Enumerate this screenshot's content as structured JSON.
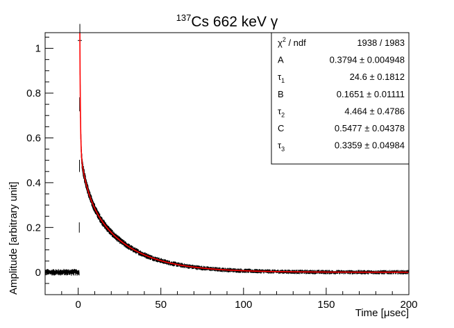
{
  "chart_data": {
    "type": "scatter",
    "title": {
      "superscript": "137",
      "text": "Cs 662 keV γ"
    },
    "xlabel": "Time [μsec]",
    "ylabel": "Amplitude [arbitrary unit]",
    "xlim": [
      -20,
      200
    ],
    "ylim": [
      -0.1,
      1.07
    ],
    "xticks": [
      0,
      50,
      100,
      150,
      200
    ],
    "yticks": [
      0,
      0.2,
      0.4,
      0.6,
      0.8,
      1
    ],
    "ytick_labels": [
      "0",
      "0.2",
      "0.4",
      "0.6",
      "0.8",
      "1"
    ],
    "grid": false,
    "series": [
      {
        "kind": "data points with error bars",
        "color": "#000000",
        "baseline_before_pulse": 0.0,
        "pulse_start_x": 0.6,
        "peak": {
          "x": 1.0,
          "y": 1.0,
          "error": 0.035
        }
      },
      {
        "kind": "fit curve",
        "color": "#ff0000",
        "model": "A·exp(-t/τ1) + B·exp(-t/τ2) + C·exp(-t/τ3)",
        "range": [
          1.0,
          200
        ]
      }
    ],
    "stats_box": {
      "placement": "top-right",
      "rows": [
        {
          "name": "χ",
          "sup": "2",
          "suffix": " / ndf",
          "value": "1938 / 1983"
        },
        {
          "name": "A",
          "sub": "",
          "value": "0.3794",
          "error": "0.004948"
        },
        {
          "name": "τ",
          "sub": "1",
          "value": "24.6",
          "error": "0.1812"
        },
        {
          "name": "B",
          "sub": "",
          "value": "0.1651",
          "error": "0.01111"
        },
        {
          "name": "τ",
          "sub": "2",
          "value": "4.464",
          "error": "0.4786"
        },
        {
          "name": "C",
          "sub": "",
          "value": "0.5477",
          "error": "0.04378"
        },
        {
          "name": "τ",
          "sub": "3",
          "value": "0.3359",
          "error": "0.04984"
        }
      ]
    }
  }
}
